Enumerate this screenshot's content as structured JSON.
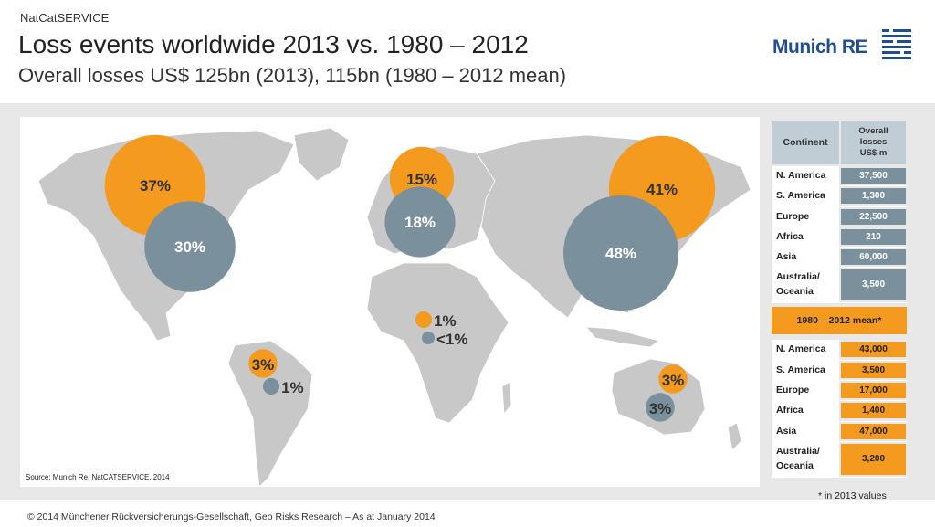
{
  "header": {
    "kicker": "NatCatSERVICE",
    "title": "Loss events worldwide 2013 vs. 1980 – 2012",
    "subtitle": "Overall losses US$ 125bn (2013), 115bn (1980 – 2012 mean)"
  },
  "logo": {
    "text": "Munich RE"
  },
  "colors": {
    "orange": "#F39A1F",
    "grey": "#7B909D",
    "land": "#C8C8C8",
    "band": "#E8E8E8"
  },
  "map": {
    "source": "Source: Munich Re, NatCATSERVICE, 2014"
  },
  "chart_data": {
    "type": "bubble-map",
    "series": [
      {
        "name": "2013",
        "color": "#F39A1F"
      },
      {
        "name": "1980 – 2012 mean",
        "color": "#7B909D"
      }
    ],
    "bubbles": [
      {
        "region": "N. America",
        "series": "2013",
        "label": "37%",
        "value": 37
      },
      {
        "region": "N. America",
        "series": "1980 – 2012 mean",
        "label": "30%",
        "value": 30
      },
      {
        "region": "Europe",
        "series": "2013",
        "label": "15%",
        "value": 15
      },
      {
        "region": "Europe",
        "series": "1980 – 2012 mean",
        "label": "18%",
        "value": 18
      },
      {
        "region": "Asia",
        "series": "2013",
        "label": "41%",
        "value": 41
      },
      {
        "region": "Asia",
        "series": "1980 – 2012 mean",
        "label": "48%",
        "value": 48
      },
      {
        "region": "Africa",
        "series": "2013",
        "label": "1%",
        "value": 1
      },
      {
        "region": "Africa",
        "series": "1980 – 2012 mean",
        "label": "<1%",
        "value": 0.5
      },
      {
        "region": "S. America",
        "series": "2013",
        "label": "3%",
        "value": 3
      },
      {
        "region": "S. America",
        "series": "1980 – 2012 mean",
        "label": "1%",
        "value": 1
      },
      {
        "region": "Australia/ Oceania",
        "series": "2013",
        "label": "3%",
        "value": 3
      },
      {
        "region": "Australia/ Oceania",
        "series": "1980 – 2012 mean",
        "label": "3%",
        "value": 3
      }
    ]
  },
  "table": {
    "col1_header": "Continent",
    "col2_header": [
      "Overall",
      "losses",
      "US$ m"
    ],
    "rows_2013": [
      {
        "continent": "N. America",
        "value": "37,500"
      },
      {
        "continent": "S. America",
        "value": "1,300"
      },
      {
        "continent": "Europe",
        "value": "22,500"
      },
      {
        "continent": "Africa",
        "value": "210"
      },
      {
        "continent": "Asia",
        "value": "60,000"
      },
      {
        "continent": "Australia/ Oceania",
        "value": "3,500"
      }
    ],
    "mean_header": "1980 – 2012 mean*",
    "rows_mean": [
      {
        "continent": "N. America",
        "value": "43,000"
      },
      {
        "continent": "S. America",
        "value": "3,500"
      },
      {
        "continent": "Europe",
        "value": "17,000"
      },
      {
        "continent": "Africa",
        "value": "1,400"
      },
      {
        "continent": "Asia",
        "value": "47,000"
      },
      {
        "continent": "Australia/ Oceania",
        "value": "3,200"
      }
    ]
  },
  "footnote": "* in 2013 values",
  "copyright": "© 2014 Münchener Rückversicherungs-Gesellschaft, Geo Risks Research – As at January 2014"
}
